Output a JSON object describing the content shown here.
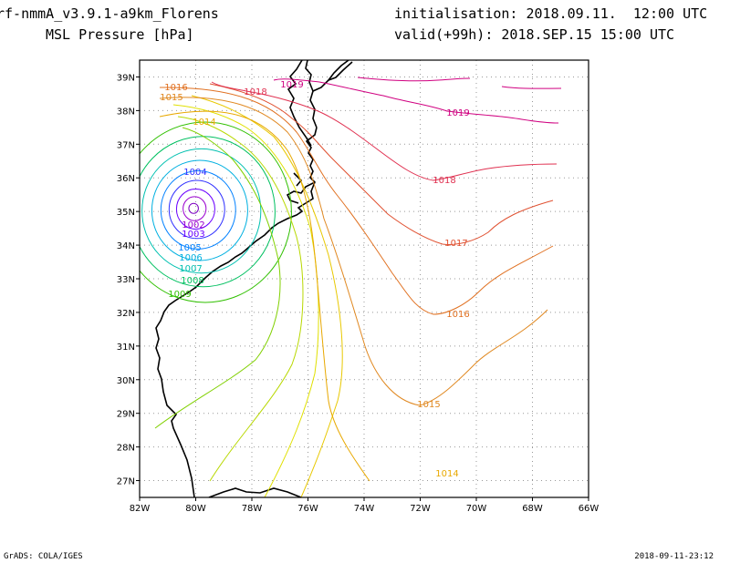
{
  "header": {
    "model": "rf-nmmA_v3.9.1-a9km_Florens",
    "field": "MSL Pressure [hPa]",
    "init": "initialisation: 2018.09.11.  12:00 UTC",
    "valid": "valid(+99h): 2018.SEP.15 15:00 UTC"
  },
  "footer": {
    "left": "GrADS: COLA/IGES",
    "right": "2018-09-11-23:12"
  },
  "map": {
    "lon_labels": [
      "82W",
      "80W",
      "78W",
      "76W",
      "74W",
      "72W",
      "70W",
      "68W",
      "66W"
    ],
    "lat_labels": [
      "27N",
      "28N",
      "29N",
      "30N",
      "31N",
      "32N",
      "33N",
      "34N",
      "35N",
      "36N",
      "37N",
      "38N",
      "39N"
    ],
    "grid": "dotted",
    "storm_center": {
      "lon": -80.1,
      "lat": 35.1
    },
    "contour_labels": [
      "1002",
      "1003",
      "1004",
      "1005",
      "1006",
      "1007",
      "1008",
      "1009",
      "1014",
      "1015",
      "1016",
      "1017",
      "1018",
      "1019"
    ],
    "colors": {
      "1001": "#7b00c0",
      "1002": "#9a00d0",
      "1003": "#6a00ff",
      "1004": "#3030ff",
      "1005": "#0080ff",
      "1006": "#00b0e0",
      "1007": "#00c0b0",
      "1008": "#00c060",
      "1009": "#30c000",
      "1010": "#80d000",
      "1011": "#b8d800",
      "1012": "#e0e000",
      "1013": "#e8c800",
      "1014": "#e8a800",
      "1015": "#e08820",
      "1016": "#e07020",
      "1017": "#e05030",
      "1018": "#e03050",
      "1019": "#d00080"
    }
  }
}
